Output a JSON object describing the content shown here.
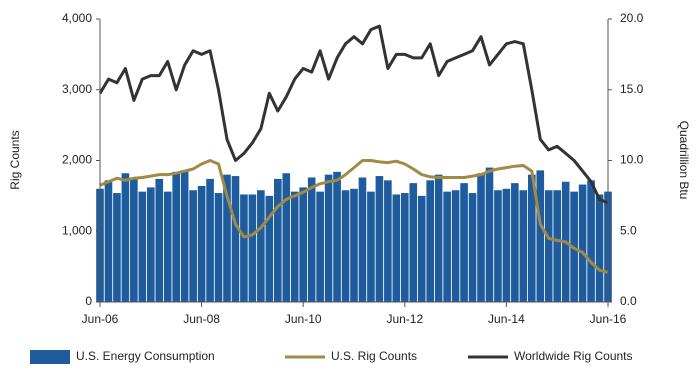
{
  "chart_data": {
    "type": "bar",
    "y_label": "Rig Counts",
    "y2_label": "Quadrillion Btu",
    "categories": [
      "Jun-06",
      null,
      null,
      null,
      null,
      null,
      null,
      null,
      null,
      null,
      null,
      null,
      "Jun-08",
      null,
      null,
      null,
      null,
      null,
      null,
      null,
      null,
      null,
      null,
      null,
      "Jun-10",
      null,
      null,
      null,
      null,
      null,
      null,
      null,
      null,
      null,
      null,
      null,
      "Jun-12",
      null,
      null,
      null,
      null,
      null,
      null,
      null,
      null,
      null,
      null,
      null,
      "Jun-14",
      null,
      null,
      null,
      null,
      null,
      null,
      null,
      null,
      null,
      null,
      null,
      "Jun-16"
    ],
    "ylim": [
      0,
      4000
    ],
    "yticks": [
      0,
      {
        "value": 1000,
        "label": "1,000"
      },
      {
        "value": 2000,
        "label": "2,000"
      },
      {
        "value": 3000,
        "label": "3,000"
      },
      {
        "value": 4000,
        "label": "4,000"
      }
    ],
    "y2lim": [
      0,
      20
    ],
    "y2ticks": [
      {
        "value": 0,
        "label": "0.0"
      },
      {
        "value": 5,
        "label": "5.0"
      },
      {
        "value": 10,
        "label": "10.0"
      },
      {
        "value": 15,
        "label": "15.0"
      },
      {
        "value": 20,
        "label": "20.0"
      }
    ],
    "series": [
      {
        "name": "U.S. Energy Consumption",
        "type": "bar",
        "axis": "y2",
        "color": "#1f5c9e",
        "values": [
          8.0,
          8.6,
          7.7,
          9.1,
          8.8,
          7.8,
          8.1,
          8.7,
          7.8,
          9.2,
          9.3,
          7.9,
          8.2,
          8.7,
          7.7,
          9.0,
          8.9,
          7.6,
          7.6,
          7.9,
          7.5,
          8.7,
          9.1,
          7.8,
          8.1,
          8.8,
          7.8,
          9.0,
          9.2,
          7.9,
          8.0,
          8.8,
          7.8,
          8.9,
          8.6,
          7.6,
          7.7,
          8.4,
          7.5,
          8.6,
          9.0,
          7.8,
          7.9,
          8.4,
          7.7,
          9.1,
          9.5,
          7.9,
          8.0,
          8.4,
          7.9,
          9.0,
          9.3,
          7.9,
          7.9,
          8.5,
          7.8,
          8.3,
          8.6,
          7.6,
          7.8
        ]
      },
      {
        "name": "U.S. Rig Counts",
        "type": "line",
        "color": "#a08a44",
        "values": [
          1650,
          1700,
          1750,
          1720,
          1750,
          1760,
          1780,
          1800,
          1800,
          1820,
          1850,
          1880,
          1950,
          2000,
          1950,
          1500,
          1100,
          920,
          950,
          1050,
          1200,
          1350,
          1450,
          1500,
          1550,
          1620,
          1670,
          1700,
          1720,
          1800,
          1900,
          2000,
          2000,
          1980,
          1970,
          1990,
          1950,
          1880,
          1800,
          1770,
          1760,
          1760,
          1760,
          1760,
          1780,
          1800,
          1850,
          1880,
          1900,
          1920,
          1930,
          1850,
          1100,
          900,
          870,
          850,
          760,
          700,
          560,
          450,
          420
        ]
      },
      {
        "name": "Worldwide Rig Counts",
        "type": "line",
        "color": "#333333",
        "values": [
          2950,
          3150,
          3100,
          3300,
          2850,
          3150,
          3200,
          3200,
          3400,
          3000,
          3350,
          3550,
          3500,
          3550,
          3000,
          2300,
          2000,
          2100,
          2250,
          2450,
          2950,
          2700,
          2900,
          3150,
          3300,
          3250,
          3550,
          3150,
          3450,
          3650,
          3750,
          3650,
          3850,
          3900,
          3300,
          3500,
          3500,
          3450,
          3450,
          3650,
          3200,
          3400,
          3450,
          3500,
          3550,
          3750,
          3350,
          3500,
          3650,
          3680,
          3650,
          3000,
          2300,
          2150,
          2200,
          2100,
          2000,
          1850,
          1700,
          1450,
          1400
        ]
      }
    ],
    "legend": "bottom"
  }
}
